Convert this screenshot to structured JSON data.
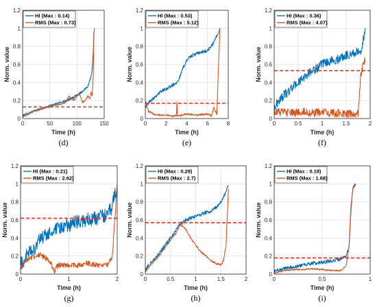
{
  "chart_data": [
    {
      "type": "line",
      "caption": "(d)",
      "xlabel": "Time (h)",
      "ylabel": "Norm. value",
      "xlim": [
        0,
        150
      ],
      "ylim": [
        0,
        1.2
      ],
      "xticks": [
        0,
        50,
        100,
        150
      ],
      "xtick_labels": [
        "0",
        "50",
        "100",
        "150"
      ],
      "yticks": [
        0,
        0.2,
        0.4,
        0.6,
        0.8,
        1,
        1.2
      ],
      "ytick_labels": [
        "0",
        "0.2",
        "0.4",
        "0.6",
        "0.8",
        "1",
        "1.2"
      ],
      "grid": true,
      "legend": "top-left",
      "threshold": 0.13,
      "series": [
        {
          "name": "HI (Max : 0.14)",
          "color": "#0072BD",
          "noise": 0.012,
          "x": [
            0,
            10,
            20,
            30,
            40,
            50,
            60,
            70,
            80,
            90,
            100,
            110,
            115,
            120,
            125,
            128,
            130,
            131,
            132
          ],
          "y": [
            0.03,
            0.06,
            0.08,
            0.1,
            0.12,
            0.14,
            0.16,
            0.18,
            0.2,
            0.22,
            0.26,
            0.3,
            0.33,
            0.36,
            0.45,
            0.55,
            0.75,
            0.95,
            1.0
          ]
        },
        {
          "name": "RMS (Max : 0.73)",
          "color": "#D95319",
          "noise": 0.008,
          "x": [
            0,
            10,
            20,
            30,
            40,
            50,
            60,
            70,
            80,
            85,
            90,
            95,
            100,
            105,
            110,
            115,
            120,
            124,
            126,
            128,
            130,
            131,
            132
          ],
          "y": [
            0.02,
            0.05,
            0.08,
            0.1,
            0.12,
            0.13,
            0.15,
            0.16,
            0.18,
            0.25,
            0.22,
            0.2,
            0.25,
            0.27,
            0.18,
            0.2,
            0.25,
            0.22,
            0.3,
            0.25,
            0.5,
            0.9,
            1.0
          ]
        }
      ]
    },
    {
      "type": "line",
      "caption": "(e)",
      "xlabel": "Time (h)",
      "ylabel": "Norm. value",
      "xlim": [
        0,
        8
      ],
      "ylim": [
        0,
        1.2
      ],
      "xticks": [
        0,
        2,
        4,
        6,
        8
      ],
      "xtick_labels": [
        "0",
        "2",
        "4",
        "6",
        "8"
      ],
      "yticks": [
        0,
        0.2,
        0.4,
        0.6,
        0.8,
        1,
        1.2
      ],
      "ytick_labels": [
        "0",
        "0.2",
        "0.4",
        "0.6",
        "0.8",
        "1",
        "1.2"
      ],
      "grid": true,
      "legend": "top-left",
      "threshold": 0.17,
      "series": [
        {
          "name": "HI (Max : 0.53)",
          "color": "#0072BD",
          "noise": 0.018,
          "x": [
            0,
            0.5,
            1,
            1.5,
            2,
            2.5,
            3,
            3.3,
            3.6,
            4,
            4.5,
            5,
            5.5,
            6,
            6.5,
            7,
            7.2
          ],
          "y": [
            0.13,
            0.2,
            0.25,
            0.3,
            0.33,
            0.36,
            0.4,
            0.45,
            0.55,
            0.65,
            0.7,
            0.72,
            0.74,
            0.75,
            0.82,
            0.95,
            1.0
          ]
        },
        {
          "name": "RMS (Max : 5.12)",
          "color": "#D95319",
          "noise": 0.01,
          "x": [
            0,
            0.3,
            0.8,
            1.5,
            2,
            2.5,
            3,
            3.05,
            3.1,
            3.2,
            4,
            5,
            6,
            6.4,
            6.6,
            6.9,
            7,
            7.1,
            7.2
          ],
          "y": [
            0.2,
            0.08,
            0.05,
            0.04,
            0.04,
            0.03,
            0.03,
            0.2,
            0.03,
            0.03,
            0.05,
            0.04,
            0.05,
            0.03,
            0.12,
            0.05,
            0.4,
            0.7,
            1.0
          ]
        }
      ]
    },
    {
      "type": "line",
      "caption": "(f)",
      "xlabel": "Time (h)",
      "ylabel": "Norm. value",
      "xlim": [
        0,
        2
      ],
      "ylim": [
        0,
        1.2
      ],
      "xticks": [
        0,
        0.5,
        1,
        1.5,
        2
      ],
      "xtick_labels": [
        "0",
        "0.5",
        "1",
        "1.5",
        "2"
      ],
      "yticks": [
        0,
        0.2,
        0.4,
        0.6,
        0.8,
        1,
        1.2
      ],
      "ytick_labels": [
        "0",
        "0.2",
        "0.4",
        "0.6",
        "0.8",
        "1",
        "1.2"
      ],
      "grid": true,
      "legend": "top-left",
      "threshold": 0.53,
      "series": [
        {
          "name": "HI (Max : 0.36)",
          "color": "#0072BD",
          "noise": 0.05,
          "x": [
            0,
            0.1,
            0.2,
            0.3,
            0.4,
            0.5,
            0.6,
            0.7,
            0.8,
            0.9,
            1.0,
            1.1,
            1.2,
            1.3,
            1.4,
            1.5,
            1.6,
            1.7,
            1.8,
            1.85,
            1.9
          ],
          "y": [
            0.12,
            0.2,
            0.26,
            0.3,
            0.36,
            0.4,
            0.44,
            0.5,
            0.53,
            0.56,
            0.6,
            0.62,
            0.64,
            0.65,
            0.68,
            0.7,
            0.72,
            0.73,
            0.75,
            0.85,
            1.0
          ]
        },
        {
          "name": "RMS (Max : 4.07)",
          "color": "#D95319",
          "noise": 0.045,
          "x": [
            0,
            0.2,
            0.4,
            0.6,
            0.8,
            1.0,
            1.2,
            1.4,
            1.6,
            1.7,
            1.75,
            1.8,
            1.85,
            1.9
          ],
          "y": [
            0.08,
            0.07,
            0.06,
            0.08,
            0.06,
            0.07,
            0.06,
            0.06,
            0.05,
            0.04,
            0.05,
            0.45,
            0.6,
            0.65
          ]
        }
      ]
    },
    {
      "type": "line",
      "caption": "(g)",
      "xlabel": "Time (h)",
      "ylabel": "Norm. value",
      "xlim": [
        0,
        2
      ],
      "ylim": [
        0,
        1.2
      ],
      "xticks": [
        0,
        1,
        2
      ],
      "xtick_labels": [
        "0",
        "1",
        "2"
      ],
      "yticks": [
        0,
        0.2,
        0.4,
        0.6,
        0.8,
        1,
        1.2
      ],
      "ytick_labels": [
        "0",
        "0.2",
        "0.4",
        "0.6",
        "0.8",
        "1",
        "1.2"
      ],
      "grid": true,
      "legend": "top-left",
      "threshold": 0.62,
      "series": [
        {
          "name": "HI (Max : 0.21)",
          "color": "#0072BD",
          "noise": 0.08,
          "x": [
            0,
            0.1,
            0.2,
            0.3,
            0.4,
            0.5,
            0.6,
            0.8,
            1.0,
            1.2,
            1.4,
            1.6,
            1.8,
            1.9,
            1.95,
            2.0
          ],
          "y": [
            0.1,
            0.18,
            0.25,
            0.3,
            0.38,
            0.42,
            0.45,
            0.5,
            0.55,
            0.58,
            0.6,
            0.62,
            0.66,
            0.75,
            0.9,
            0.95
          ]
        },
        {
          "name": "RMS (Max : 2.62)",
          "color": "#D95319",
          "noise": 0.03,
          "x": [
            0,
            0.1,
            0.2,
            0.3,
            0.4,
            0.5,
            0.6,
            0.7,
            0.75,
            0.8,
            1.0,
            1.2,
            1.4,
            1.6,
            1.8,
            1.9,
            1.95,
            2.0
          ],
          "y": [
            0.05,
            0.15,
            0.18,
            0.2,
            0.22,
            0.18,
            0.15,
            0.02,
            0.08,
            0.1,
            0.1,
            0.1,
            0.12,
            0.1,
            0.11,
            0.2,
            0.6,
            1.0
          ]
        }
      ]
    },
    {
      "type": "line",
      "caption": "(h)",
      "xlabel": "Time (h)",
      "ylabel": "Norm. value",
      "xlim": [
        0,
        2
      ],
      "ylim": [
        0,
        1.2
      ],
      "xticks": [
        0,
        0.5,
        1,
        1.5,
        2
      ],
      "xtick_labels": [
        "0",
        "0.5",
        "1",
        "1.5",
        "2"
      ],
      "yticks": [
        0,
        0.2,
        0.4,
        0.6,
        0.8,
        1,
        1.2
      ],
      "ytick_labels": [
        "0",
        "0.2",
        "0.4",
        "0.6",
        "0.8",
        "1",
        "1.2"
      ],
      "grid": true,
      "legend": "top-left",
      "threshold": 0.57,
      "series": [
        {
          "name": "HI (Max : 0.29)",
          "color": "#0072BD",
          "noise": 0.02,
          "x": [
            0,
            0.1,
            0.2,
            0.3,
            0.4,
            0.5,
            0.6,
            0.7,
            0.8,
            0.9,
            1.0,
            1.1,
            1.2,
            1.3,
            1.4,
            1.5,
            1.6,
            1.65
          ],
          "y": [
            0.05,
            0.12,
            0.18,
            0.25,
            0.32,
            0.4,
            0.48,
            0.56,
            0.6,
            0.62,
            0.64,
            0.66,
            0.68,
            0.7,
            0.74,
            0.8,
            0.9,
            1.0
          ]
        },
        {
          "name": "RMS (Max : 2.7)",
          "color": "#D95319",
          "noise": 0.01,
          "x": [
            0,
            0.1,
            0.2,
            0.3,
            0.4,
            0.5,
            0.6,
            0.7,
            0.8,
            0.9,
            1.0,
            1.1,
            1.2,
            1.3,
            1.4,
            1.5,
            1.55,
            1.6,
            1.65
          ],
          "y": [
            0.03,
            0.1,
            0.16,
            0.22,
            0.3,
            0.38,
            0.45,
            0.55,
            0.5,
            0.4,
            0.32,
            0.25,
            0.2,
            0.15,
            0.12,
            0.1,
            0.15,
            0.3,
            0.95
          ]
        }
      ]
    },
    {
      "type": "line",
      "caption": "(i)",
      "xlabel": "Time (h)",
      "ylabel": "Norm. value",
      "xlim": [
        0,
        1
      ],
      "ylim": [
        0,
        1.2
      ],
      "xticks": [
        0,
        0.5,
        1
      ],
      "xtick_labels": [
        "0",
        "0.5",
        "1"
      ],
      "yticks": [
        0,
        0.2,
        0.4,
        0.6,
        0.8,
        1,
        1.2
      ],
      "ytick_labels": [
        "0",
        "0.2",
        "0.4",
        "0.6",
        "0.8",
        "1",
        "1.2"
      ],
      "grid": true,
      "legend": "top-left",
      "threshold": 0.18,
      "series": [
        {
          "name": "HI (Max : 0.19)",
          "color": "#0072BD",
          "noise": 0.02,
          "x": [
            0,
            0.1,
            0.2,
            0.3,
            0.4,
            0.5,
            0.6,
            0.7,
            0.75,
            0.78,
            0.8,
            0.82,
            0.85
          ],
          "y": [
            0.03,
            0.06,
            0.08,
            0.1,
            0.12,
            0.13,
            0.15,
            0.17,
            0.2,
            0.3,
            0.7,
            0.95,
            1.0
          ]
        },
        {
          "name": "RMS (Max : 1.68)",
          "color": "#D95319",
          "noise": 0.008,
          "x": [
            0,
            0.1,
            0.2,
            0.3,
            0.4,
            0.5,
            0.6,
            0.7,
            0.75,
            0.78,
            0.8,
            0.82,
            0.85
          ],
          "y": [
            0.01,
            0.04,
            0.05,
            0.05,
            0.06,
            0.05,
            0.04,
            0.04,
            0.1,
            0.3,
            0.75,
            0.95,
            1.0
          ]
        }
      ]
    }
  ]
}
